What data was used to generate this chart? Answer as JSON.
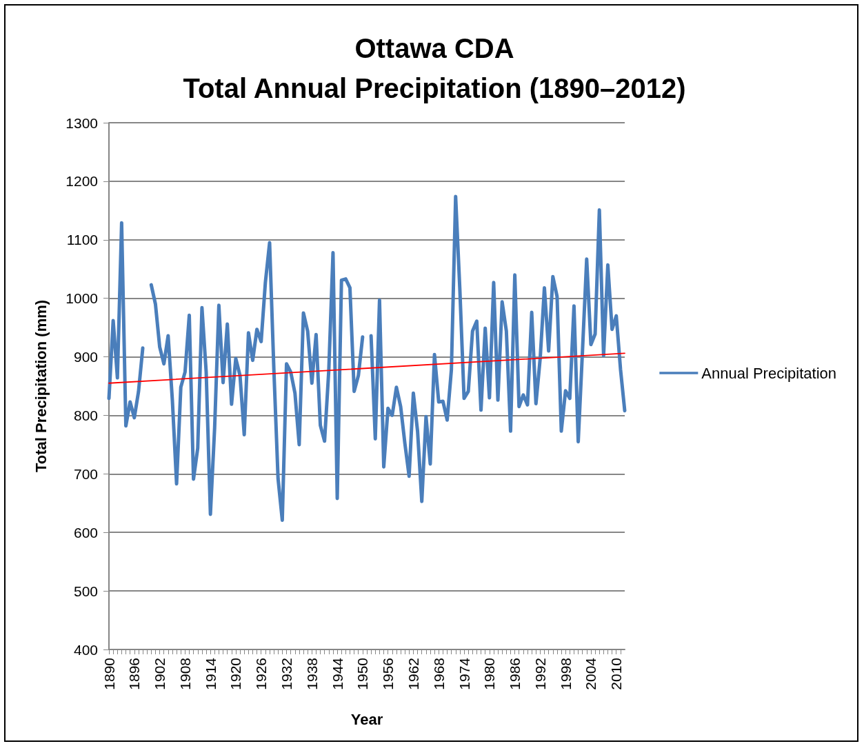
{
  "chart_data": {
    "type": "line",
    "title": "Ottawa CDA\nTotal Annual Precipitation (1890–2012)",
    "xlabel": "Year",
    "ylabel": "Total Precipitation (mm)",
    "x": [
      1890,
      1891,
      1892,
      1893,
      1894,
      1895,
      1896,
      1897,
      1898,
      1899,
      1900,
      1901,
      1902,
      1903,
      1904,
      1905,
      1906,
      1907,
      1908,
      1909,
      1910,
      1911,
      1912,
      1913,
      1914,
      1915,
      1916,
      1917,
      1918,
      1919,
      1920,
      1921,
      1922,
      1923,
      1924,
      1925,
      1926,
      1927,
      1928,
      1929,
      1930,
      1931,
      1932,
      1933,
      1934,
      1935,
      1936,
      1937,
      1938,
      1939,
      1940,
      1941,
      1942,
      1943,
      1944,
      1945,
      1946,
      1947,
      1948,
      1949,
      1950,
      1951,
      1952,
      1953,
      1954,
      1955,
      1956,
      1957,
      1958,
      1959,
      1960,
      1961,
      1962,
      1963,
      1964,
      1965,
      1966,
      1967,
      1968,
      1969,
      1970,
      1971,
      1972,
      1973,
      1974,
      1975,
      1976,
      1977,
      1978,
      1979,
      1980,
      1981,
      1982,
      1983,
      1984,
      1985,
      1986,
      1987,
      1988,
      1989,
      1990,
      1991,
      1992,
      1993,
      1994,
      1995,
      1996,
      1997,
      1998,
      1999,
      2000,
      2001,
      2002,
      2003,
      2004,
      2005,
      2006,
      2007,
      2008,
      2009,
      2010,
      2011,
      2012
    ],
    "series": [
      {
        "name": "Annual Precipitation",
        "color": "#4a7ebb",
        "values": [
          829,
          962,
          864,
          1129,
          782,
          823,
          796,
          841,
          915,
          null,
          1023,
          990,
          917,
          888,
          936,
          826,
          683,
          848,
          874,
          971,
          691,
          744,
          984,
          874,
          631,
          779,
          988,
          856,
          956,
          819,
          897,
          868,
          767,
          941,
          894,
          947,
          926,
          1027,
          1095,
          880,
          692,
          621,
          888,
          874,
          838,
          750,
          975,
          944,
          855,
          938,
          783,
          756,
          877,
          1078,
          658,
          1031,
          1033,
          1018,
          841,
          868,
          934,
          null,
          936,
          760,
          997,
          712,
          812,
          800,
          848,
          815,
          752,
          696,
          838,
          773,
          653,
          798,
          717,
          904,
          823,
          824,
          792,
          878,
          1174,
          1015,
          829,
          841,
          944,
          961,
          809,
          949,
          830,
          1027,
          826,
          994,
          944,
          773,
          1040,
          815,
          835,
          818,
          976,
          820,
          897,
          1018,
          910,
          1037,
          1003,
          773,
          842,
          829,
          987,
          755,
          909,
          1067,
          921,
          939,
          1151,
          902,
          1057,
          947,
          970,
          879,
          808
        ]
      },
      {
        "type": "line",
        "color": "#ff0000",
        "x": [
          1890,
          2012
        ],
        "values": [
          855,
          906
        ]
      }
    ],
    "xlim": [
      1890,
      2012
    ],
    "xticks": [
      1890,
      1896,
      1902,
      1908,
      1914,
      1920,
      1926,
      1932,
      1938,
      1944,
      1950,
      1956,
      1962,
      1968,
      1974,
      1980,
      1986,
      1992,
      1998,
      2004,
      2010
    ],
    "ylim": [
      400,
      1300
    ],
    "yticks": [
      400,
      500,
      600,
      700,
      800,
      900,
      1000,
      1100,
      1200,
      1300
    ],
    "grid": "y",
    "legend": "right",
    "marker": "none"
  }
}
